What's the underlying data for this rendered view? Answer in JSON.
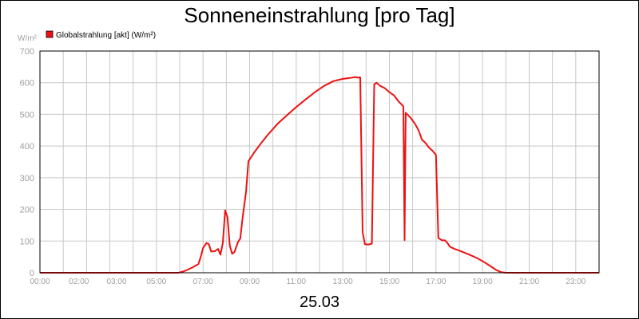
{
  "chart_data": {
    "type": "line",
    "title": "Sonneneinstrahlung [pro Tag]",
    "unit_label": "W/m²",
    "xlabel": "25.03",
    "grid": true,
    "legend_position": "top-left",
    "xlim": [
      0,
      24
    ],
    "ylim": [
      0,
      700
    ],
    "y_ticks": [
      "0",
      "100",
      "200",
      "300",
      "400",
      "500",
      "600",
      "700"
    ],
    "x_ticks": [
      {
        "label": "00:00",
        "x": 0
      },
      {
        "label": "02:00",
        "x": 2
      },
      {
        "label": "03:00",
        "x": 3
      },
      {
        "label": "05:00",
        "x": 5
      },
      {
        "label": "07:00",
        "x": 7
      },
      {
        "label": "09:00",
        "x": 9
      },
      {
        "label": "11:00",
        "x": 11
      },
      {
        "label": "13:00",
        "x": 13
      },
      {
        "label": "15:00",
        "x": 15
      },
      {
        "label": "17:00",
        "x": 17
      },
      {
        "label": "19:00",
        "x": 19
      },
      {
        "label": "21:00",
        "x": 21
      },
      {
        "label": "23:00",
        "x": 23
      }
    ],
    "series": [
      {
        "name": "Globalstrahlung [akt] (W/m²)",
        "color": "#ee1111",
        "points": [
          [
            0,
            0
          ],
          [
            5.95,
            0
          ],
          [
            6.2,
            5
          ],
          [
            6.5,
            15
          ],
          [
            6.8,
            27
          ],
          [
            6.9,
            50
          ],
          [
            7.0,
            78
          ],
          [
            7.15,
            94
          ],
          [
            7.25,
            90
          ],
          [
            7.35,
            67
          ],
          [
            7.5,
            68
          ],
          [
            7.65,
            75
          ],
          [
            7.75,
            57
          ],
          [
            7.85,
            95
          ],
          [
            7.95,
            197
          ],
          [
            8.05,
            175
          ],
          [
            8.15,
            85
          ],
          [
            8.25,
            60
          ],
          [
            8.35,
            65
          ],
          [
            8.5,
            97
          ],
          [
            8.6,
            108
          ],
          [
            8.7,
            175
          ],
          [
            8.85,
            257
          ],
          [
            8.95,
            352
          ],
          [
            9.2,
            380
          ],
          [
            9.5,
            410
          ],
          [
            9.8,
            437
          ],
          [
            10.2,
            470
          ],
          [
            10.6,
            497
          ],
          [
            11.0,
            523
          ],
          [
            11.4,
            547
          ],
          [
            11.8,
            570
          ],
          [
            12.2,
            590
          ],
          [
            12.6,
            605
          ],
          [
            13.0,
            612
          ],
          [
            13.3,
            615
          ],
          [
            13.55,
            618
          ],
          [
            13.65,
            616
          ],
          [
            13.75,
            617
          ],
          [
            13.85,
            128
          ],
          [
            13.95,
            90
          ],
          [
            14.1,
            89
          ],
          [
            14.25,
            92
          ],
          [
            14.35,
            595
          ],
          [
            14.45,
            600
          ],
          [
            14.6,
            590
          ],
          [
            14.8,
            583
          ],
          [
            15.0,
            570
          ],
          [
            15.2,
            560
          ],
          [
            15.4,
            540
          ],
          [
            15.5,
            533
          ],
          [
            15.6,
            525
          ],
          [
            15.65,
            103
          ],
          [
            15.7,
            505
          ],
          [
            15.9,
            490
          ],
          [
            16.1,
            470
          ],
          [
            16.25,
            450
          ],
          [
            16.4,
            420
          ],
          [
            16.55,
            410
          ],
          [
            16.7,
            395
          ],
          [
            16.85,
            385
          ],
          [
            17.0,
            372
          ],
          [
            17.1,
            110
          ],
          [
            17.25,
            103
          ],
          [
            17.4,
            102
          ],
          [
            17.5,
            93
          ],
          [
            17.6,
            82
          ],
          [
            17.8,
            75
          ],
          [
            18.0,
            70
          ],
          [
            18.2,
            64
          ],
          [
            18.5,
            55
          ],
          [
            18.8,
            45
          ],
          [
            19.1,
            32
          ],
          [
            19.4,
            18
          ],
          [
            19.6,
            8
          ],
          [
            19.8,
            2
          ],
          [
            20.0,
            0
          ],
          [
            24.0,
            0
          ]
        ]
      }
    ]
  }
}
